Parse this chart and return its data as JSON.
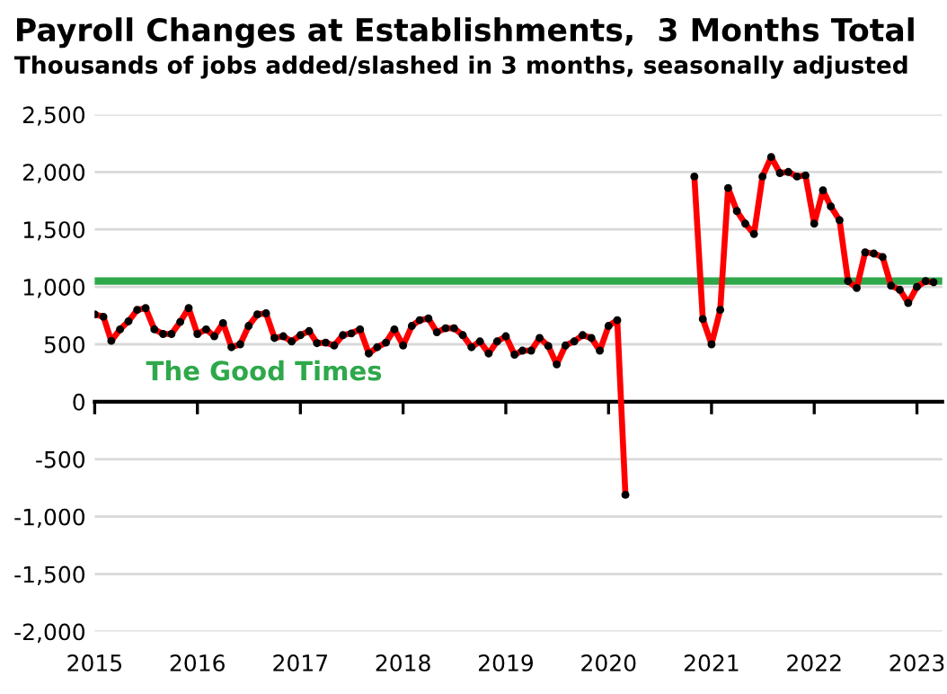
{
  "chart_data": {
    "type": "line",
    "title": "Payroll Changes at Establishments,  3 Months Total",
    "subtitle": "Thousands of jobs added/slashed in 3 months, seasonally adjusted",
    "x": [
      "2015-01",
      "2015-02",
      "2015-03",
      "2015-04",
      "2015-05",
      "2015-06",
      "2015-07",
      "2015-08",
      "2015-09",
      "2015-10",
      "2015-11",
      "2015-12",
      "2016-01",
      "2016-02",
      "2016-03",
      "2016-04",
      "2016-05",
      "2016-06",
      "2016-07",
      "2016-08",
      "2016-09",
      "2016-10",
      "2016-11",
      "2016-12",
      "2017-01",
      "2017-02",
      "2017-03",
      "2017-04",
      "2017-05",
      "2017-06",
      "2017-07",
      "2017-08",
      "2017-09",
      "2017-10",
      "2017-11",
      "2017-12",
      "2018-01",
      "2018-02",
      "2018-03",
      "2018-04",
      "2018-05",
      "2018-06",
      "2018-07",
      "2018-08",
      "2018-09",
      "2018-10",
      "2018-11",
      "2018-12",
      "2019-01",
      "2019-02",
      "2019-03",
      "2019-04",
      "2019-05",
      "2019-06",
      "2019-07",
      "2019-08",
      "2019-09",
      "2019-10",
      "2019-11",
      "2019-12",
      "2020-01",
      "2020-02",
      "2020-03",
      "2020-04",
      "2020-05",
      "2020-06",
      "2020-07",
      "2020-08",
      "2020-09",
      "2020-10",
      "2020-11",
      "2020-12",
      "2021-01",
      "2021-02",
      "2021-03",
      "2021-04",
      "2021-05",
      "2021-06",
      "2021-07",
      "2021-08",
      "2021-09",
      "2021-10",
      "2021-11",
      "2021-12",
      "2022-01",
      "2022-02",
      "2022-03",
      "2022-04",
      "2022-05",
      "2022-06",
      "2022-07",
      "2022-08",
      "2022-09",
      "2022-10",
      "2022-11",
      "2022-12",
      "2023-01",
      "2023-02",
      "2023-03"
    ],
    "series": [
      {
        "color": "#ff0000",
        "values": [
          760,
          740,
          530,
          630,
          700,
          800,
          815,
          630,
          590,
          590,
          695,
          815,
          590,
          630,
          570,
          685,
          475,
          500,
          660,
          760,
          770,
          555,
          570,
          525,
          580,
          615,
          510,
          515,
          490,
          580,
          595,
          630,
          420,
          475,
          515,
          630,
          490,
          660,
          710,
          725,
          605,
          640,
          640,
          580,
          475,
          525,
          420,
          525,
          570,
          410,
          445,
          445,
          555,
          485,
          325,
          490,
          525,
          580,
          555,
          445,
          660,
          710,
          -810,
          null,
          null,
          null,
          null,
          null,
          null,
          null,
          1960,
          720,
          500,
          800,
          1860,
          1660,
          1550,
          1460,
          1960,
          2130,
          1990,
          2000,
          1960,
          1970,
          1550,
          1840,
          1700,
          1580,
          1050,
          990,
          1300,
          1290,
          1260,
          1010,
          975,
          860,
          1000,
          1050,
          1040
        ]
      }
    ],
    "xlim": [
      "2015-01",
      "2023-04"
    ],
    "xticks": [
      "2015",
      "2016",
      "2017",
      "2018",
      "2019",
      "2020",
      "2021",
      "2022",
      "2023"
    ],
    "ylim": [
      -2000,
      2500
    ],
    "yticks": [
      {
        "value": -2000,
        "label": "-2,000"
      },
      {
        "value": -1500,
        "label": "-1,500"
      },
      {
        "value": -1000,
        "label": "-1,000"
      },
      {
        "value": -500,
        "label": "-500"
      },
      0,
      500,
      {
        "value": 1000,
        "label": "1,000"
      },
      {
        "value": 1500,
        "label": "1,500"
      },
      {
        "value": 2000,
        "label": "2,000"
      },
      {
        "value": 2500,
        "label": "2,500"
      }
    ],
    "ref_lines": [
      {
        "axis": "y",
        "value": 1050,
        "label": "The Good Times",
        "color": "#2ea84a"
      }
    ],
    "grid": "y",
    "marker": "circle",
    "line_style": "solid"
  }
}
